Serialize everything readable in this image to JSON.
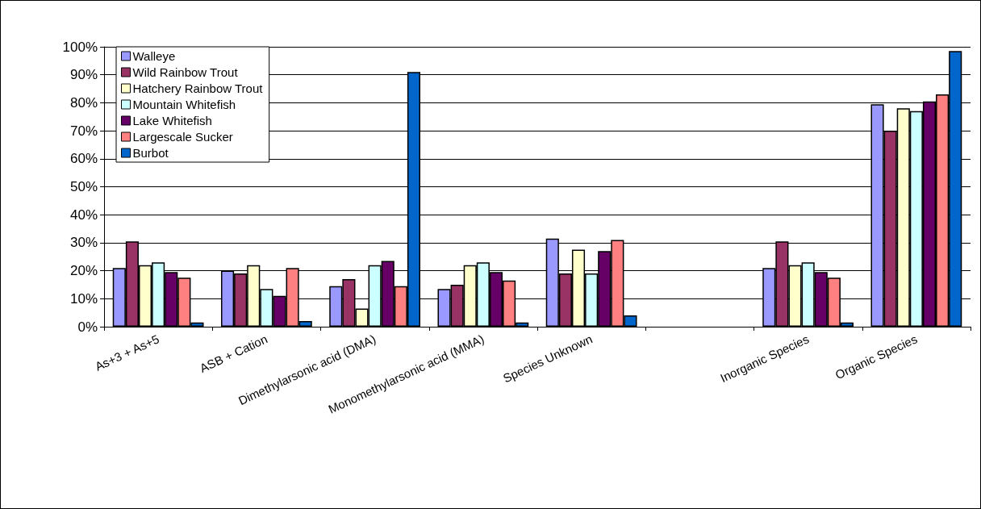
{
  "chart_data": {
    "type": "bar",
    "categories": [
      "As+3 + As+5",
      "ASB + Cation",
      "Dimethylarsonic acid (DMA)",
      "Monomethylarsonic acid (MMA)",
      "Species Unknown",
      null,
      "Inorganic Species",
      "Organic Species"
    ],
    "series": [
      {
        "name": "Walleye",
        "color": "#9999ff",
        "values": [
          21,
          20,
          14.5,
          13.5,
          31.5,
          null,
          21,
          79.5
        ]
      },
      {
        "name": "Wild Rainbow Trout",
        "color": "#993366",
        "values": [
          30.5,
          19,
          17,
          15,
          19,
          null,
          30.5,
          70
        ]
      },
      {
        "name": "Hatchery Rainbow Trout",
        "color": "#ffffcc",
        "values": [
          22,
          22,
          6.5,
          22,
          27.5,
          null,
          22,
          78
        ]
      },
      {
        "name": "Mountain Whitefish",
        "color": "#ccffff",
        "values": [
          23,
          13.5,
          22,
          23,
          19,
          null,
          23,
          77
        ]
      },
      {
        "name": "Lake Whitefish",
        "color": "#660066",
        "values": [
          19.5,
          11,
          23.5,
          19.5,
          27,
          null,
          19.5,
          80.5
        ]
      },
      {
        "name": "Largescale Sucker",
        "color": "#ff8080",
        "values": [
          17.5,
          21,
          14.5,
          16.5,
          31,
          null,
          17.5,
          83
        ]
      },
      {
        "name": "Burbot",
        "color": "#0066cc",
        "values": [
          1.5,
          2,
          91,
          1.5,
          4,
          null,
          1.5,
          98.5
        ]
      }
    ],
    "ylim": [
      0,
      100
    ],
    "yticks": [
      {
        "value": 0,
        "label": "0%"
      },
      {
        "value": 10,
        "label": "10%"
      },
      {
        "value": 20,
        "label": "20%"
      },
      {
        "value": 30,
        "label": "30%"
      },
      {
        "value": 40,
        "label": "40%"
      },
      {
        "value": 50,
        "label": "50%"
      },
      {
        "value": 60,
        "label": "60%"
      },
      {
        "value": 70,
        "label": "70%"
      },
      {
        "value": 80,
        "label": "80%"
      },
      {
        "value": 90,
        "label": "90%"
      },
      {
        "value": 100,
        "label": "100%"
      }
    ],
    "grid": "y",
    "legend": "top left"
  }
}
